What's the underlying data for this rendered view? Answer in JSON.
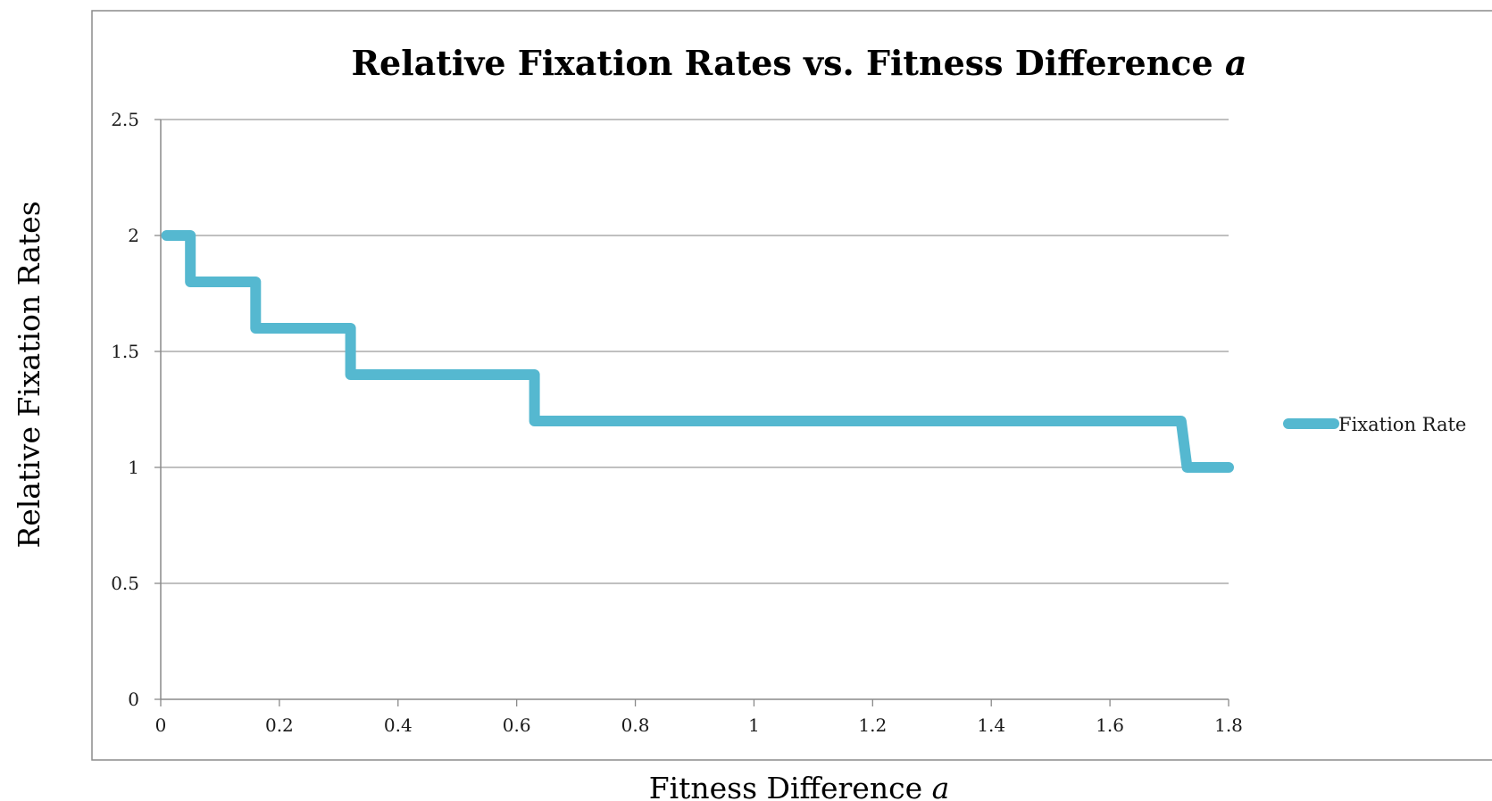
{
  "chart_data": {
    "type": "line",
    "title": "Relative Fixation Rates vs. Fitness Difference",
    "title_variable": "a",
    "xlabel": "Fitness Difference",
    "xlabel_variable": "a",
    "ylabel": "Relative Fixation Rates",
    "xlim": [
      0,
      1.8
    ],
    "ylim": [
      0,
      2.5
    ],
    "x_ticks": [
      "0",
      "0.2",
      "0.4",
      "0.6",
      "0.8",
      "1",
      "1.2",
      "1.4",
      "1.6",
      "1.8"
    ],
    "y_ticks": [
      "0",
      "0.5",
      "1",
      "1.5",
      "2",
      "2.5"
    ],
    "grid": true,
    "legend_position": "right",
    "series": [
      {
        "name": "Fixation Rate",
        "color": "#55b8d0",
        "x": [
          0.01,
          0.05,
          0.05,
          0.16,
          0.16,
          0.32,
          0.32,
          0.63,
          0.63,
          1.72,
          1.73,
          1.8
        ],
        "values": [
          2,
          2,
          1.8,
          1.8,
          1.6,
          1.6,
          1.4,
          1.4,
          1.2,
          1.2,
          1,
          1
        ]
      }
    ]
  }
}
